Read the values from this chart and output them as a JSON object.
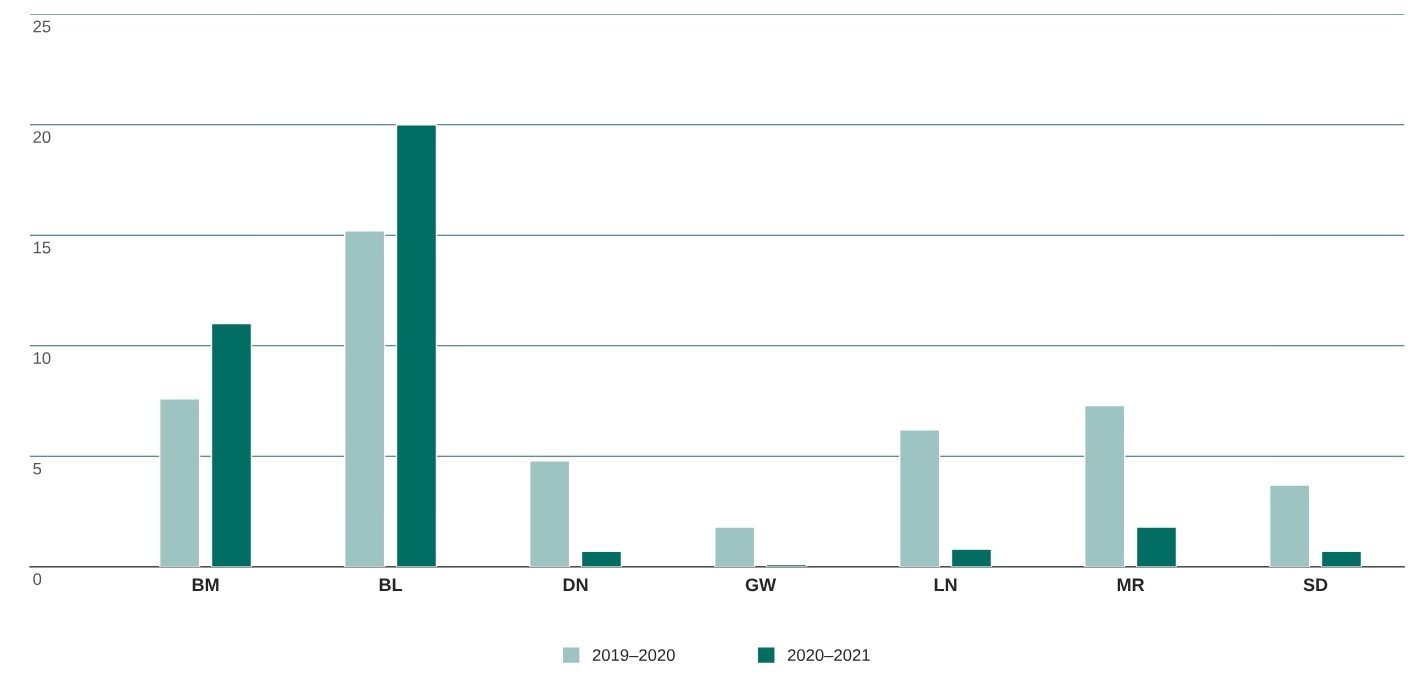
{
  "chart_data": {
    "type": "bar",
    "categories": [
      "BM",
      "BL",
      "DN",
      "GW",
      "LN",
      "MR",
      "SD"
    ],
    "series": [
      {
        "name": "2019–2020",
        "color": "#9dc4c1",
        "values": [
          7.6,
          15.2,
          4.8,
          1.8,
          6.2,
          7.3,
          3.7
        ]
      },
      {
        "name": "2020–2021",
        "color": "#006e62",
        "values": [
          11.0,
          20.0,
          0.7,
          0.1,
          0.8,
          1.8,
          0.7
        ]
      }
    ],
    "ylim": [
      0,
      25
    ],
    "yticks": [
      0,
      5,
      10,
      15,
      20,
      25
    ],
    "grid": "y",
    "legend": "bottom"
  }
}
